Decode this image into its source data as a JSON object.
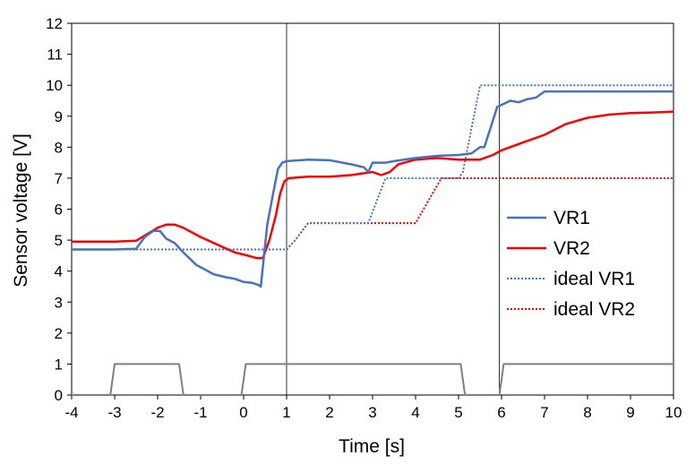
{
  "chart_data": {
    "type": "line",
    "title": "",
    "xlabel": "Time [s]",
    "ylabel": "Sensor voltage [V]",
    "xlim": [
      -4,
      10
    ],
    "ylim": [
      0,
      12
    ],
    "x_ticks": [
      -4,
      -3,
      -2,
      -1,
      0,
      1,
      2,
      3,
      4,
      5,
      6,
      7,
      8,
      9,
      10
    ],
    "y_ticks": [
      0,
      1,
      2,
      3,
      4,
      5,
      6,
      7,
      8,
      9,
      10,
      11,
      12
    ],
    "grid": false,
    "legend_position": "right",
    "vertical_markers": [
      1.0,
      5.95
    ],
    "series": [
      {
        "name": "VR1",
        "color": "#4472C4",
        "style": "solid",
        "points": [
          [
            -4,
            4.7
          ],
          [
            -3,
            4.7
          ],
          [
            -2.5,
            4.72
          ],
          [
            -2.3,
            5.1
          ],
          [
            -2.1,
            5.3
          ],
          [
            -1.95,
            5.3
          ],
          [
            -1.8,
            5.05
          ],
          [
            -1.6,
            4.9
          ],
          [
            -1.4,
            4.6
          ],
          [
            -1.1,
            4.2
          ],
          [
            -0.9,
            4.05
          ],
          [
            -0.7,
            3.9
          ],
          [
            -0.4,
            3.8
          ],
          [
            -0.2,
            3.75
          ],
          [
            0,
            3.65
          ],
          [
            0.2,
            3.62
          ],
          [
            0.35,
            3.55
          ],
          [
            0.4,
            3.5
          ],
          [
            0.55,
            5.5
          ],
          [
            0.7,
            6.6
          ],
          [
            0.8,
            7.3
          ],
          [
            0.9,
            7.5
          ],
          [
            1.0,
            7.55
          ],
          [
            1.5,
            7.6
          ],
          [
            2.0,
            7.58
          ],
          [
            2.5,
            7.45
          ],
          [
            2.8,
            7.35
          ],
          [
            2.9,
            7.2
          ],
          [
            3.0,
            7.5
          ],
          [
            3.3,
            7.5
          ],
          [
            3.5,
            7.55
          ],
          [
            4.0,
            7.65
          ],
          [
            4.5,
            7.72
          ],
          [
            5.0,
            7.75
          ],
          [
            5.3,
            7.8
          ],
          [
            5.5,
            8.0
          ],
          [
            5.6,
            8.0
          ],
          [
            5.9,
            9.3
          ],
          [
            6.2,
            9.5
          ],
          [
            6.4,
            9.45
          ],
          [
            6.6,
            9.55
          ],
          [
            6.8,
            9.6
          ],
          [
            7.0,
            9.8
          ],
          [
            8.0,
            9.8
          ],
          [
            9.0,
            9.8
          ],
          [
            10,
            9.8
          ]
        ]
      },
      {
        "name": "VR2",
        "color": "#FF0000",
        "style": "solid",
        "points": [
          [
            -4,
            4.95
          ],
          [
            -3.5,
            4.95
          ],
          [
            -3,
            4.95
          ],
          [
            -2.5,
            4.98
          ],
          [
            -2.3,
            5.15
          ],
          [
            -2.0,
            5.4
          ],
          [
            -1.8,
            5.5
          ],
          [
            -1.6,
            5.5
          ],
          [
            -1.4,
            5.4
          ],
          [
            -1.0,
            5.1
          ],
          [
            -0.6,
            4.85
          ],
          [
            -0.2,
            4.6
          ],
          [
            0.1,
            4.5
          ],
          [
            0.3,
            4.42
          ],
          [
            0.45,
            4.42
          ],
          [
            0.6,
            5.0
          ],
          [
            0.75,
            5.8
          ],
          [
            0.85,
            6.5
          ],
          [
            0.95,
            6.9
          ],
          [
            1.05,
            7.0
          ],
          [
            1.5,
            7.05
          ],
          [
            2.0,
            7.05
          ],
          [
            2.5,
            7.1
          ],
          [
            3.0,
            7.2
          ],
          [
            3.2,
            7.1
          ],
          [
            3.4,
            7.2
          ],
          [
            3.6,
            7.45
          ],
          [
            4.0,
            7.6
          ],
          [
            4.5,
            7.65
          ],
          [
            5.0,
            7.6
          ],
          [
            5.5,
            7.6
          ],
          [
            5.8,
            7.75
          ],
          [
            6.0,
            7.9
          ],
          [
            6.5,
            8.15
          ],
          [
            7.0,
            8.4
          ],
          [
            7.5,
            8.75
          ],
          [
            8.0,
            8.95
          ],
          [
            8.5,
            9.05
          ],
          [
            9.0,
            9.1
          ],
          [
            9.5,
            9.12
          ],
          [
            10,
            9.15
          ]
        ]
      },
      {
        "name": "ideal VR1",
        "color": "#4472C4",
        "style": "dotted",
        "points": [
          [
            -4,
            4.7
          ],
          [
            1.0,
            4.7
          ],
          [
            1.2,
            5.0
          ],
          [
            1.5,
            5.55
          ],
          [
            2.9,
            5.55
          ],
          [
            3.3,
            7.0
          ],
          [
            5.0,
            7.0
          ],
          [
            5.1,
            7.2
          ],
          [
            5.5,
            10.0
          ],
          [
            10,
            10.0
          ]
        ]
      },
      {
        "name": "ideal VR2",
        "color": "#FF0000",
        "style": "dotted",
        "points": [
          [
            -4,
            4.7
          ],
          [
            1.0,
            4.7
          ],
          [
            1.2,
            5.0
          ],
          [
            1.5,
            5.55
          ],
          [
            4.0,
            5.55
          ],
          [
            4.6,
            7.0
          ],
          [
            10,
            7.0
          ]
        ]
      },
      {
        "name": "",
        "color": "#7F7F7F",
        "style": "solid",
        "points": [
          [
            -4,
            0
          ],
          [
            -3.1,
            0
          ],
          [
            -3.0,
            1
          ],
          [
            -1.5,
            1
          ],
          [
            -1.4,
            0
          ],
          [
            -0.05,
            0
          ],
          [
            0.05,
            1
          ],
          [
            5.05,
            1
          ],
          [
            5.15,
            0
          ],
          [
            5.95,
            0
          ],
          [
            6.05,
            1
          ],
          [
            10,
            1
          ]
        ]
      }
    ]
  }
}
